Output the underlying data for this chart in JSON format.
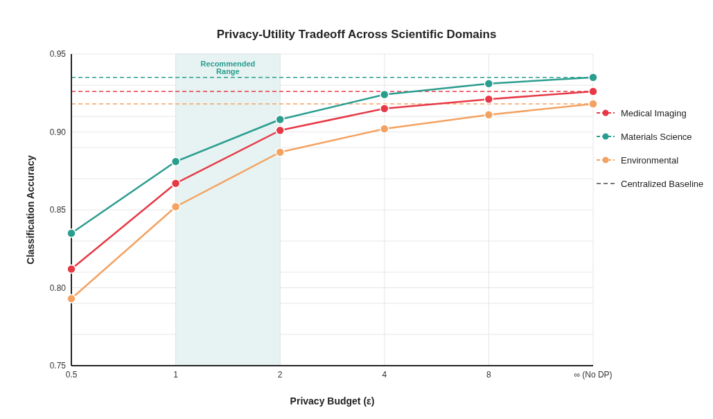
{
  "chart_data": {
    "type": "line",
    "title": "Privacy-Utility Tradeoff Across Scientific Domains",
    "xlabel": "Privacy Budget (ε)",
    "ylabel": "Classification Accuracy",
    "categories": [
      "0.5",
      "1",
      "2",
      "4",
      "8",
      "∞ (No DP)"
    ],
    "series": [
      {
        "name": "Medical Imaging",
        "color": "#e63946",
        "values": [
          0.812,
          0.867,
          0.901,
          0.915,
          0.921,
          0.926
        ]
      },
      {
        "name": "Materials Science",
        "color": "#2a9d8f",
        "values": [
          0.835,
          0.881,
          0.908,
          0.924,
          0.931,
          0.935
        ]
      },
      {
        "name": "Environmental",
        "color": "#f4a261",
        "values": [
          0.793,
          0.852,
          0.887,
          0.902,
          0.911,
          0.918
        ]
      },
      {
        "name": "Centralized Baseline",
        "color": "#777777",
        "values": [
          null,
          null,
          null,
          null,
          null,
          null
        ],
        "marker": "none",
        "line_style": "dashed"
      }
    ],
    "ylim": [
      0.75,
      0.95
    ],
    "yticks": [
      0.75,
      {
        "value": 0.77,
        "label": null
      },
      {
        "value": 0.79,
        "label": null
      },
      {
        "value": 0.8,
        "label": "0.80"
      },
      {
        "value": 0.81,
        "label": null
      },
      {
        "value": 0.83,
        "label": null
      },
      0.85,
      {
        "value": 0.87,
        "label": null
      },
      {
        "value": 0.89,
        "label": null
      },
      {
        "value": 0.9,
        "label": "0.90"
      },
      {
        "value": 0.91,
        "label": null
      },
      {
        "value": 0.93,
        "label": null
      },
      0.95
    ],
    "ref_lines": [
      {
        "axis": "y",
        "value": 0.935,
        "color": "#2a9d8f",
        "line_style": "dashed"
      },
      {
        "axis": "y",
        "value": 0.926,
        "color": "#e63946",
        "line_style": "dashed"
      },
      {
        "axis": "y",
        "value": 0.918,
        "color": "#f4a261",
        "line_style": "dashed"
      }
    ],
    "bands": [
      {
        "axis": "x",
        "from": "1",
        "to": "2",
        "label": "Recommended Range",
        "color": "#e6f3f2"
      }
    ],
    "grid": true,
    "legend": "right",
    "marker": "circle",
    "line_style": "solid"
  }
}
